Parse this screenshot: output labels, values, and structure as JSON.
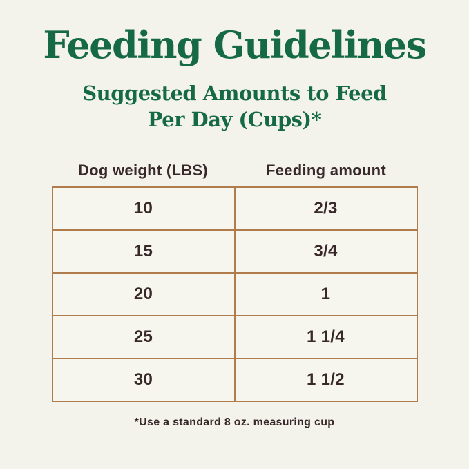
{
  "page": {
    "title": "Feeding Guidelines",
    "subtitle_line1": "Suggested Amounts to Feed",
    "subtitle_line2": "Per Day (Cups)*",
    "footnote": "*Use a standard 8 oz. measuring cup"
  },
  "colors": {
    "background": "#F3F2EB",
    "heading_green": "#156945",
    "table_border_tan": "#B17C4C",
    "table_text_brown": "#38282A"
  },
  "chart_data": {
    "type": "table",
    "title": "Feeding Guidelines",
    "subtitle": "Suggested Amounts to Feed Per Day (Cups)*",
    "columns": [
      "Dog weight (LBS)",
      "Feeding amount"
    ],
    "rows": [
      {
        "weight": "10",
        "amount": "2/3"
      },
      {
        "weight": "15",
        "amount": "3/4"
      },
      {
        "weight": "20",
        "amount": "1"
      },
      {
        "weight": "25",
        "amount": "1 1/4"
      },
      {
        "weight": "30",
        "amount": "1 1/2"
      }
    ],
    "footnote": "*Use a standard 8 oz. measuring cup",
    "layout": "two-column centered table, header labels outside bordered grid"
  }
}
